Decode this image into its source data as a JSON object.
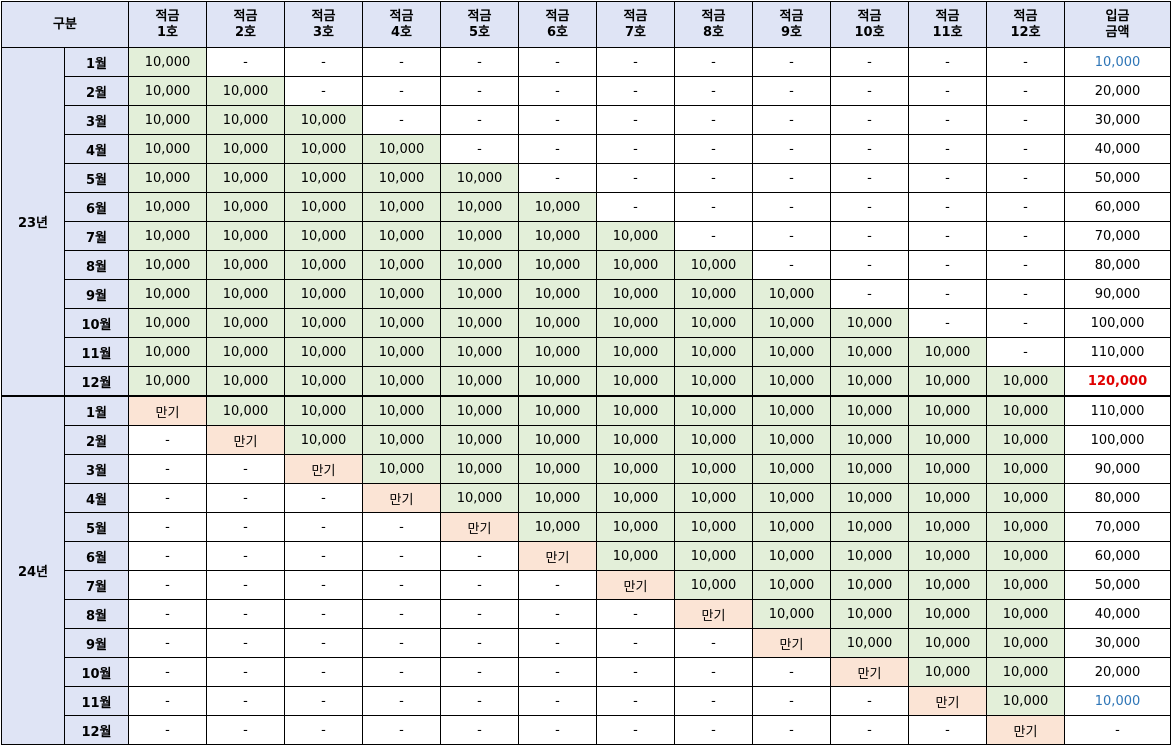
{
  "table": {
    "header_category": "구분",
    "header_cols": [
      "적금\n1호",
      "적금\n2호",
      "적금\n3호",
      "적금\n4호",
      "적금\n5호",
      "적금\n6호",
      "적금\n7호",
      "적금\n8호",
      "적금\n9호",
      "적금\n10호",
      "적금\n11호",
      "적금\n12호"
    ],
    "header_total": "입금\n금액",
    "deposit_label": "10,000",
    "maturity_label": "만기",
    "empty_label": "-",
    "years": [
      {
        "label": "23년",
        "months": [
          "1월",
          "2월",
          "3월",
          "4월",
          "5월",
          "6월",
          "7월",
          "8월",
          "9월",
          "10월",
          "11월",
          "12월"
        ],
        "totals": [
          "10,000",
          "20,000",
          "30,000",
          "40,000",
          "50,000",
          "60,000",
          "70,000",
          "80,000",
          "90,000",
          "100,000",
          "110,000",
          "120,000"
        ]
      },
      {
        "label": "24년",
        "months": [
          "1월",
          "2월",
          "3월",
          "4월",
          "5월",
          "6월",
          "7월",
          "8월",
          "9월",
          "10월",
          "11월",
          "12월"
        ],
        "totals": [
          "110,000",
          "100,000",
          "90,000",
          "80,000",
          "70,000",
          "60,000",
          "50,000",
          "40,000",
          "30,000",
          "20,000",
          "10,000",
          "-"
        ]
      }
    ]
  },
  "colors": {
    "header_bg": "#dfe4f5",
    "deposit_bg": "#e3efd9",
    "maturity_bg": "#fbe4d5",
    "total_blue": "#2e75b6",
    "total_red": "#e00000"
  }
}
